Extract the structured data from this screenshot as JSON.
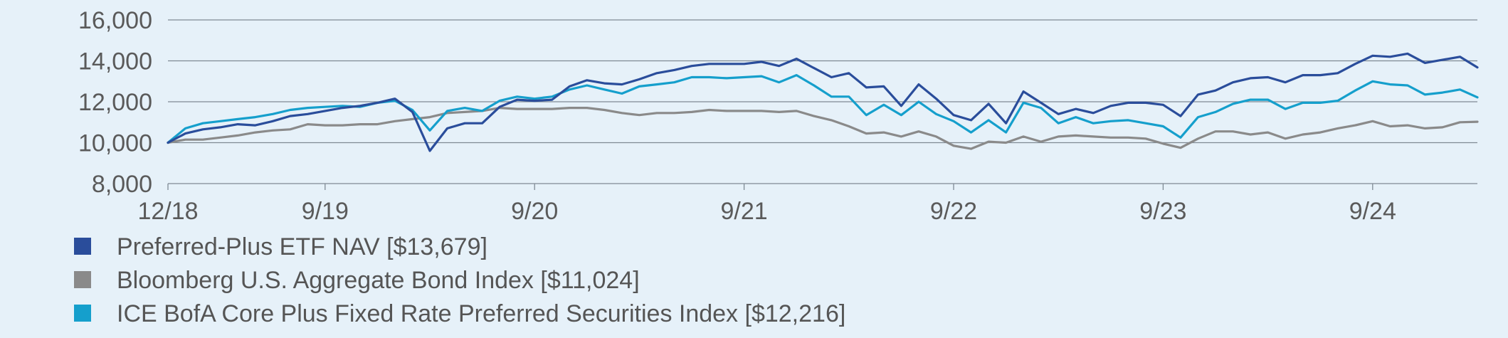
{
  "chart_data": {
    "type": "line",
    "x_start": "12/18",
    "x_tick_labels": [
      "12/18",
      "9/19",
      "9/20",
      "9/21",
      "9/22",
      "9/23",
      "9/24"
    ],
    "x_tick_positions": [
      "12/18",
      "9/19",
      "9/20",
      "9/21",
      "9/22",
      "9/23",
      "9/24"
    ],
    "ylim": [
      8000,
      16000
    ],
    "y_ticks": [
      8000,
      10000,
      12000,
      14000,
      16000
    ],
    "y_tick_labels": [
      "8,000",
      "10,000",
      "12,000",
      "14,000",
      "16,000"
    ],
    "grid": "horizontal",
    "legend_placement": "bottom",
    "series": [
      {
        "name": "Preferred-Plus ETF NAV [$13,679]",
        "color": "#2a4d9b",
        "values": [
          10000,
          10450,
          10650,
          10750,
          10900,
          10850,
          11050,
          11300,
          11400,
          11550,
          11700,
          11800,
          11950,
          12150,
          11500,
          9600,
          10700,
          10950,
          10950,
          11750,
          12100,
          12050,
          12100,
          12750,
          13050,
          12900,
          12850,
          13100,
          13400,
          13550,
          13750,
          13850,
          13850,
          13850,
          13950,
          13750,
          14100,
          13650,
          13200,
          13400,
          12700,
          12750,
          11800,
          12850,
          12150,
          11350,
          11100,
          11900,
          10950,
          12500,
          11950,
          11400,
          11650,
          11450,
          11800,
          11950,
          11950,
          11850,
          11300,
          12350,
          12550,
          12950,
          13150,
          13200,
          12950,
          13300,
          13300,
          13400,
          13850,
          14250,
          14200,
          14350,
          13900,
          14050,
          14200,
          13679
        ]
      },
      {
        "name": "Bloomberg U.S. Aggregate Bond Index [$11,024]",
        "color": "#8a8a8a",
        "values": [
          10000,
          10150,
          10150,
          10250,
          10350,
          10500,
          10600,
          10650,
          10900,
          10850,
          10850,
          10900,
          10900,
          11050,
          11150,
          11250,
          11450,
          11500,
          11550,
          11700,
          11650,
          11650,
          11650,
          11700,
          11700,
          11600,
          11450,
          11350,
          11450,
          11450,
          11500,
          11600,
          11550,
          11550,
          11550,
          11500,
          11550,
          11300,
          11100,
          10800,
          10450,
          10500,
          10300,
          10550,
          10300,
          9850,
          9700,
          10050,
          10000,
          10300,
          10050,
          10300,
          10350,
          10300,
          10250,
          10250,
          10200,
          9950,
          9750,
          10200,
          10550,
          10550,
          10400,
          10500,
          10200,
          10400,
          10500,
          10700,
          10850,
          11050,
          10800,
          10850,
          10700,
          10750,
          11000,
          11024
        ]
      },
      {
        "name": "ICE BofA Core Plus Fixed Rate Preferred Securities Index [$12,216]",
        "color": "#159fcc",
        "values": [
          10000,
          10700,
          10950,
          11050,
          11150,
          11250,
          11400,
          11600,
          11700,
          11750,
          11800,
          11750,
          11950,
          12050,
          11600,
          10600,
          11550,
          11700,
          11550,
          12050,
          12250,
          12150,
          12250,
          12600,
          12800,
          12600,
          12400,
          12750,
          12850,
          12950,
          13200,
          13200,
          13150,
          13200,
          13250,
          12950,
          13300,
          12800,
          12250,
          12250,
          11350,
          11850,
          11350,
          12000,
          11400,
          11050,
          10500,
          11100,
          10500,
          11950,
          11700,
          10950,
          11250,
          10950,
          11050,
          11100,
          10950,
          10800,
          10250,
          11250,
          11500,
          11900,
          12100,
          12100,
          11650,
          11950,
          11950,
          12050,
          12550,
          13000,
          12850,
          12800,
          12350,
          12450,
          12600,
          12216
        ]
      }
    ]
  }
}
